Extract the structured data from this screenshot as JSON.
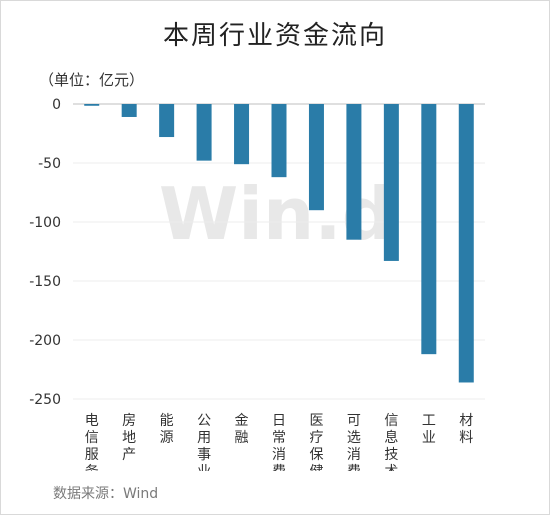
{
  "title": "本周行业资金流向",
  "unit_label": "（单位：亿元）",
  "source": "数据来源：Wind",
  "watermark": "Win.d",
  "colors": {
    "bar": "#2a7ca8",
    "grid": "#ececec",
    "axis": "#bfbfbf"
  },
  "chart_data": {
    "type": "bar",
    "title": "本周行业资金流向",
    "ylabel": "（单位：亿元）",
    "xlabel": "",
    "categories": [
      "电信服务",
      "房地产",
      "能源",
      "公用事业",
      "金融",
      "日常消费",
      "医疗保健",
      "可选消费",
      "信息技术",
      "工业",
      "材料"
    ],
    "values": [
      -1.5,
      -11,
      -28,
      -48,
      -51,
      -62,
      -90,
      -115,
      -133,
      -212,
      -236
    ],
    "ylim": [
      -250,
      0
    ],
    "yticks": [
      0,
      -50,
      -100,
      -150,
      -200,
      -250
    ],
    "grid": true
  }
}
